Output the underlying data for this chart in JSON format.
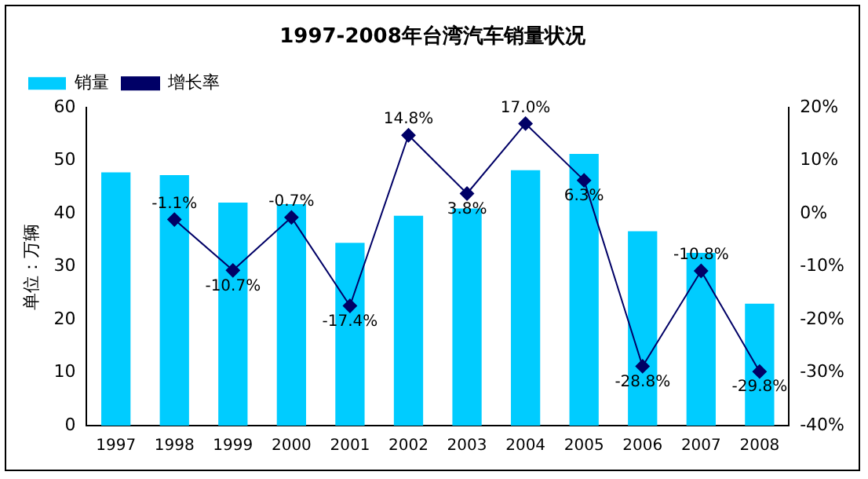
{
  "chart_data": {
    "type": "bar",
    "title": "1997-2008年台湾汽车销量状况",
    "ylabel": "单位：万辆",
    "categories": [
      "1997",
      "1998",
      "1999",
      "2000",
      "2001",
      "2002",
      "2003",
      "2004",
      "2005",
      "2006",
      "2007",
      "2008"
    ],
    "series": [
      {
        "name": "销量",
        "color": "#00ccff",
        "values": [
          47.8,
          47.3,
          42.1,
          41.8,
          34.5,
          39.6,
          41.0,
          48.2,
          51.3,
          36.7,
          32.6,
          23.0
        ]
      },
      {
        "name": "增长率",
        "type": "line",
        "axis": "y2",
        "color": "#000066",
        "marker": "diamond",
        "values": [
          null,
          -1.1,
          -10.7,
          -0.7,
          -17.4,
          14.8,
          3.8,
          17.0,
          6.3,
          -28.8,
          -10.8,
          -29.8
        ],
        "value_labels": [
          null,
          "-1.1%",
          "-10.7%",
          "-0.7%",
          "-17.4%",
          "14.8%",
          "3.8%",
          "17.0%",
          "6.3%",
          "-28.8%",
          "-10.8%",
          "-29.8%"
        ]
      }
    ],
    "ylim": [
      0,
      60
    ],
    "yticks": [
      0,
      10,
      20,
      30,
      40,
      50,
      60
    ],
    "y2lim": [
      -40,
      20
    ],
    "y2ticks": [
      {
        "value": -40,
        "label": "-40%"
      },
      {
        "value": -30,
        "label": "-30%"
      },
      {
        "value": -20,
        "label": "-20%"
      },
      {
        "value": -10,
        "label": "-10%"
      },
      {
        "value": 0,
        "label": "0%"
      },
      {
        "value": 10,
        "label": "10%"
      },
      {
        "value": 20,
        "label": "20%"
      }
    ],
    "grid": false,
    "legend": "top left"
  }
}
